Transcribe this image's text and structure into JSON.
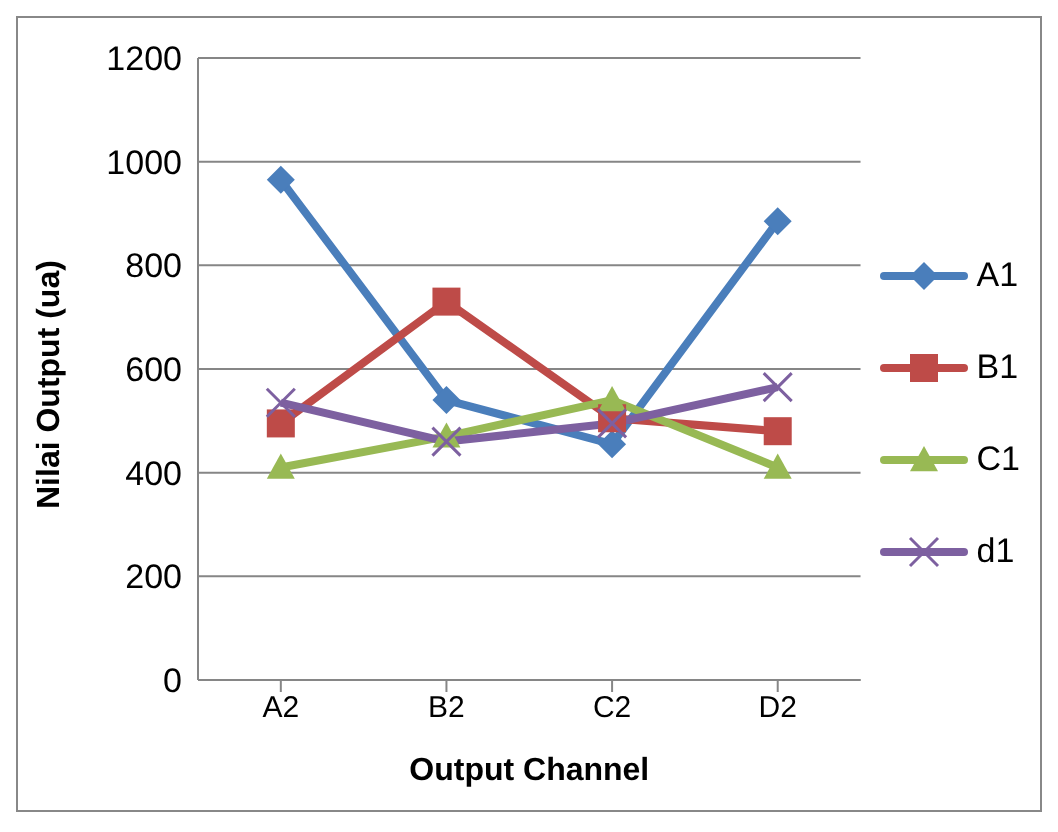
{
  "chart_data": {
    "type": "line",
    "xlabel": "Output Channel",
    "ylabel": "Nilai Output (ua)",
    "categories": [
      "A2",
      "B2",
      "C2",
      "D2"
    ],
    "series": [
      {
        "name": "A1",
        "color": "#4a7ebb",
        "marker": "diamond",
        "values": [
          965,
          540,
          455,
          885
        ]
      },
      {
        "name": "B1",
        "color": "#be4b48",
        "marker": "square",
        "values": [
          495,
          730,
          505,
          480
        ]
      },
      {
        "name": "C1",
        "color": "#98b954",
        "marker": "triangle",
        "values": [
          410,
          470,
          540,
          410
        ]
      },
      {
        "name": "d1",
        "color": "#7d60a0",
        "marker": "cross",
        "values": [
          535,
          460,
          495,
          565
        ]
      }
    ],
    "ylim": [
      0,
      1200
    ],
    "yticks": [
      0,
      200,
      400,
      600,
      800,
      1000,
      1200
    ],
    "grid": "y",
    "legend": "right"
  }
}
